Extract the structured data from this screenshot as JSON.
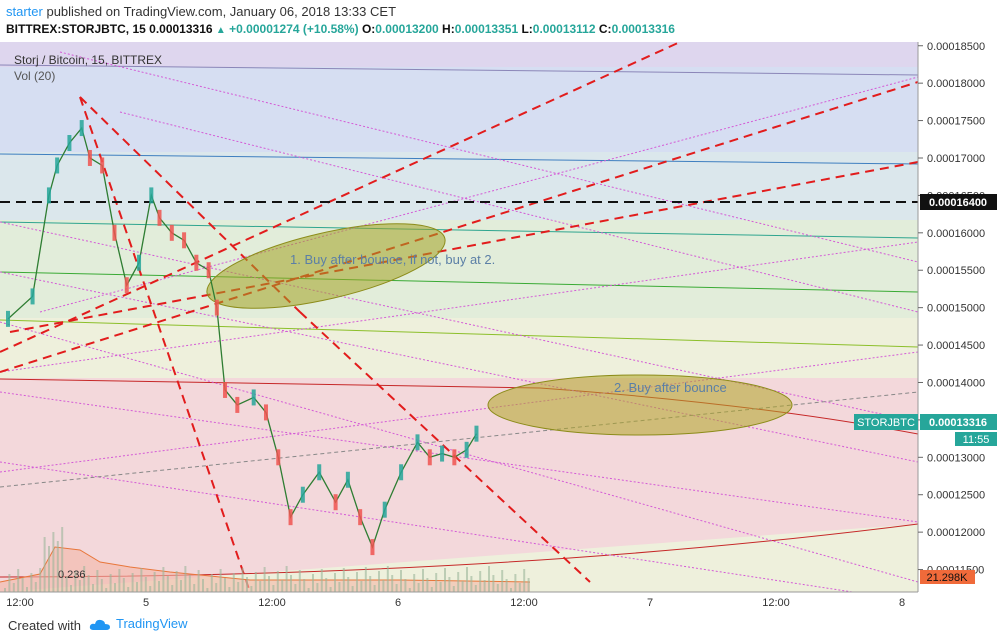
{
  "header": {
    "author": "starter",
    "published_text": "published on TradingView.com, January 06, 2018 13:33 CET",
    "symbol_line": "BITTREX:STORJBTC, 15",
    "last_price": "0.00013316",
    "change": "+0.00001274 (+10.58%)",
    "open_label": "O:",
    "open": "0.00013200",
    "high_label": "H:",
    "high": "0.00013351",
    "low_label": "L:",
    "low": "0.00013112",
    "close_label": "C:",
    "close": "0.00013316"
  },
  "chart_data": {
    "type": "candlestick",
    "title": "Storj / Bitcoin, 15, BITTREX",
    "volume_label": "Vol (20)",
    "ylim": [
      0.000112,
      0.0001855
    ],
    "y_ticks": [
      "0.00011500",
      "0.00012000",
      "0.00012500",
      "0.00013000",
      "0.00013500",
      "0.00014000",
      "0.00014500",
      "0.00015000",
      "0.00015500",
      "0.00016000",
      "0.00016500",
      "0.00017000",
      "0.00017500",
      "0.00018000",
      "0.00018500"
    ],
    "x_ticks": [
      "12:00",
      "5",
      "12:00",
      "6",
      "12:00",
      "7",
      "12:00",
      "8"
    ],
    "last_price_tag": "0.00013316",
    "symbol_tag": "STORJBTC",
    "countdown_tag": "11:55",
    "hline_price_tag": "0.00016400",
    "hline_price": 0.000164,
    "volume_tag": "21.298K",
    "fib_level_label": "0.236",
    "annotations": [
      "1. Buy after bounce, if not, buy at 2.",
      "2. Buy after bounce"
    ],
    "price_path": [
      {
        "x": 0.0,
        "y": 0.0001485
      },
      {
        "x": 0.3,
        "y": 0.0001515
      },
      {
        "x": 0.5,
        "y": 0.000165
      },
      {
        "x": 0.6,
        "y": 0.000169
      },
      {
        "x": 0.75,
        "y": 0.000172
      },
      {
        "x": 0.9,
        "y": 0.000174
      },
      {
        "x": 1.0,
        "y": 0.00017
      },
      {
        "x": 1.15,
        "y": 0.000169
      },
      {
        "x": 1.3,
        "y": 0.00016
      },
      {
        "x": 1.45,
        "y": 0.000153
      },
      {
        "x": 1.6,
        "y": 0.000156
      },
      {
        "x": 1.75,
        "y": 0.000165
      },
      {
        "x": 1.85,
        "y": 0.000162
      },
      {
        "x": 2.0,
        "y": 0.00016
      },
      {
        "x": 2.15,
        "y": 0.000159
      },
      {
        "x": 2.3,
        "y": 0.000156
      },
      {
        "x": 2.45,
        "y": 0.000155
      },
      {
        "x": 2.55,
        "y": 0.00015
      },
      {
        "x": 2.65,
        "y": 0.000139
      },
      {
        "x": 2.8,
        "y": 0.000137
      },
      {
        "x": 3.0,
        "y": 0.000138
      },
      {
        "x": 3.15,
        "y": 0.000136
      },
      {
        "x": 3.3,
        "y": 0.00013
      },
      {
        "x": 3.45,
        "y": 0.000122
      },
      {
        "x": 3.6,
        "y": 0.000125
      },
      {
        "x": 3.8,
        "y": 0.000128
      },
      {
        "x": 4.0,
        "y": 0.000124
      },
      {
        "x": 4.15,
        "y": 0.000127
      },
      {
        "x": 4.3,
        "y": 0.000122
      },
      {
        "x": 4.45,
        "y": 0.000118
      },
      {
        "x": 4.6,
        "y": 0.000123
      },
      {
        "x": 4.8,
        "y": 0.000128
      },
      {
        "x": 5.0,
        "y": 0.000132
      },
      {
        "x": 5.15,
        "y": 0.00013
      },
      {
        "x": 5.3,
        "y": 0.0001305
      },
      {
        "x": 5.45,
        "y": 0.00013
      },
      {
        "x": 5.6,
        "y": 0.000131
      },
      {
        "x": 5.72,
        "y": 0.00013316
      }
    ]
  }
}
